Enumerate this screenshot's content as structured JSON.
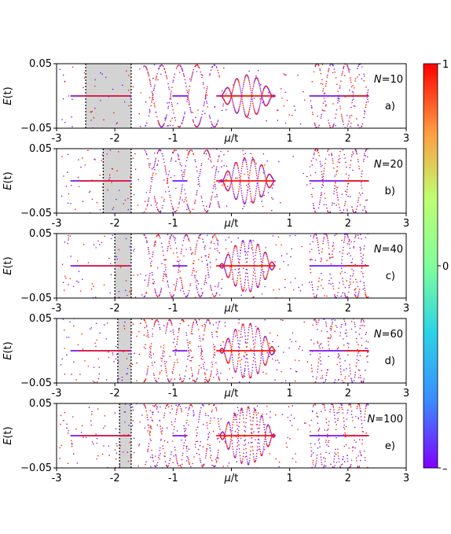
{
  "chart_data": {
    "type": "scatter",
    "xlim": [
      -3,
      3
    ],
    "ylim": [
      -0.05,
      0.05
    ],
    "x_ticks": [
      "-3",
      "-2",
      "-1",
      "μ/t",
      "1",
      "2",
      "3"
    ],
    "y_ticks": [
      "0.05",
      "−0.05"
    ],
    "ylabel_base": "E",
    "ylabel_arg": "(t)",
    "colorbar": {
      "ticks": [
        "1",
        "0",
        "–"
      ],
      "colors": [
        "#ff0000",
        "#ff9a40",
        "#bfff70",
        "#80ff9a",
        "#2ad2e6",
        "#3a8cff",
        "#8000ff"
      ]
    },
    "panels": [
      {
        "id": "a",
        "label": "a)",
        "N": "10",
        "shade": [
          -2.5,
          -1.72
        ],
        "dense": 0.45
      },
      {
        "id": "b",
        "label": "b)",
        "N": "20",
        "shade": [
          -2.2,
          -1.72
        ],
        "dense": 0.6
      },
      {
        "id": "c",
        "label": "c)",
        "N": "40",
        "shade": [
          -2.0,
          -1.72
        ],
        "dense": 0.8
      },
      {
        "id": "d",
        "label": "d)",
        "N": "60",
        "shade": [
          -1.95,
          -1.72
        ],
        "dense": 0.9
      },
      {
        "id": "e",
        "label": "e)",
        "N": "100",
        "shade": [
          -1.92,
          -1.72
        ],
        "dense": 1.0
      }
    ],
    "n_label_prefix": "N",
    "n_label_eq": "="
  }
}
